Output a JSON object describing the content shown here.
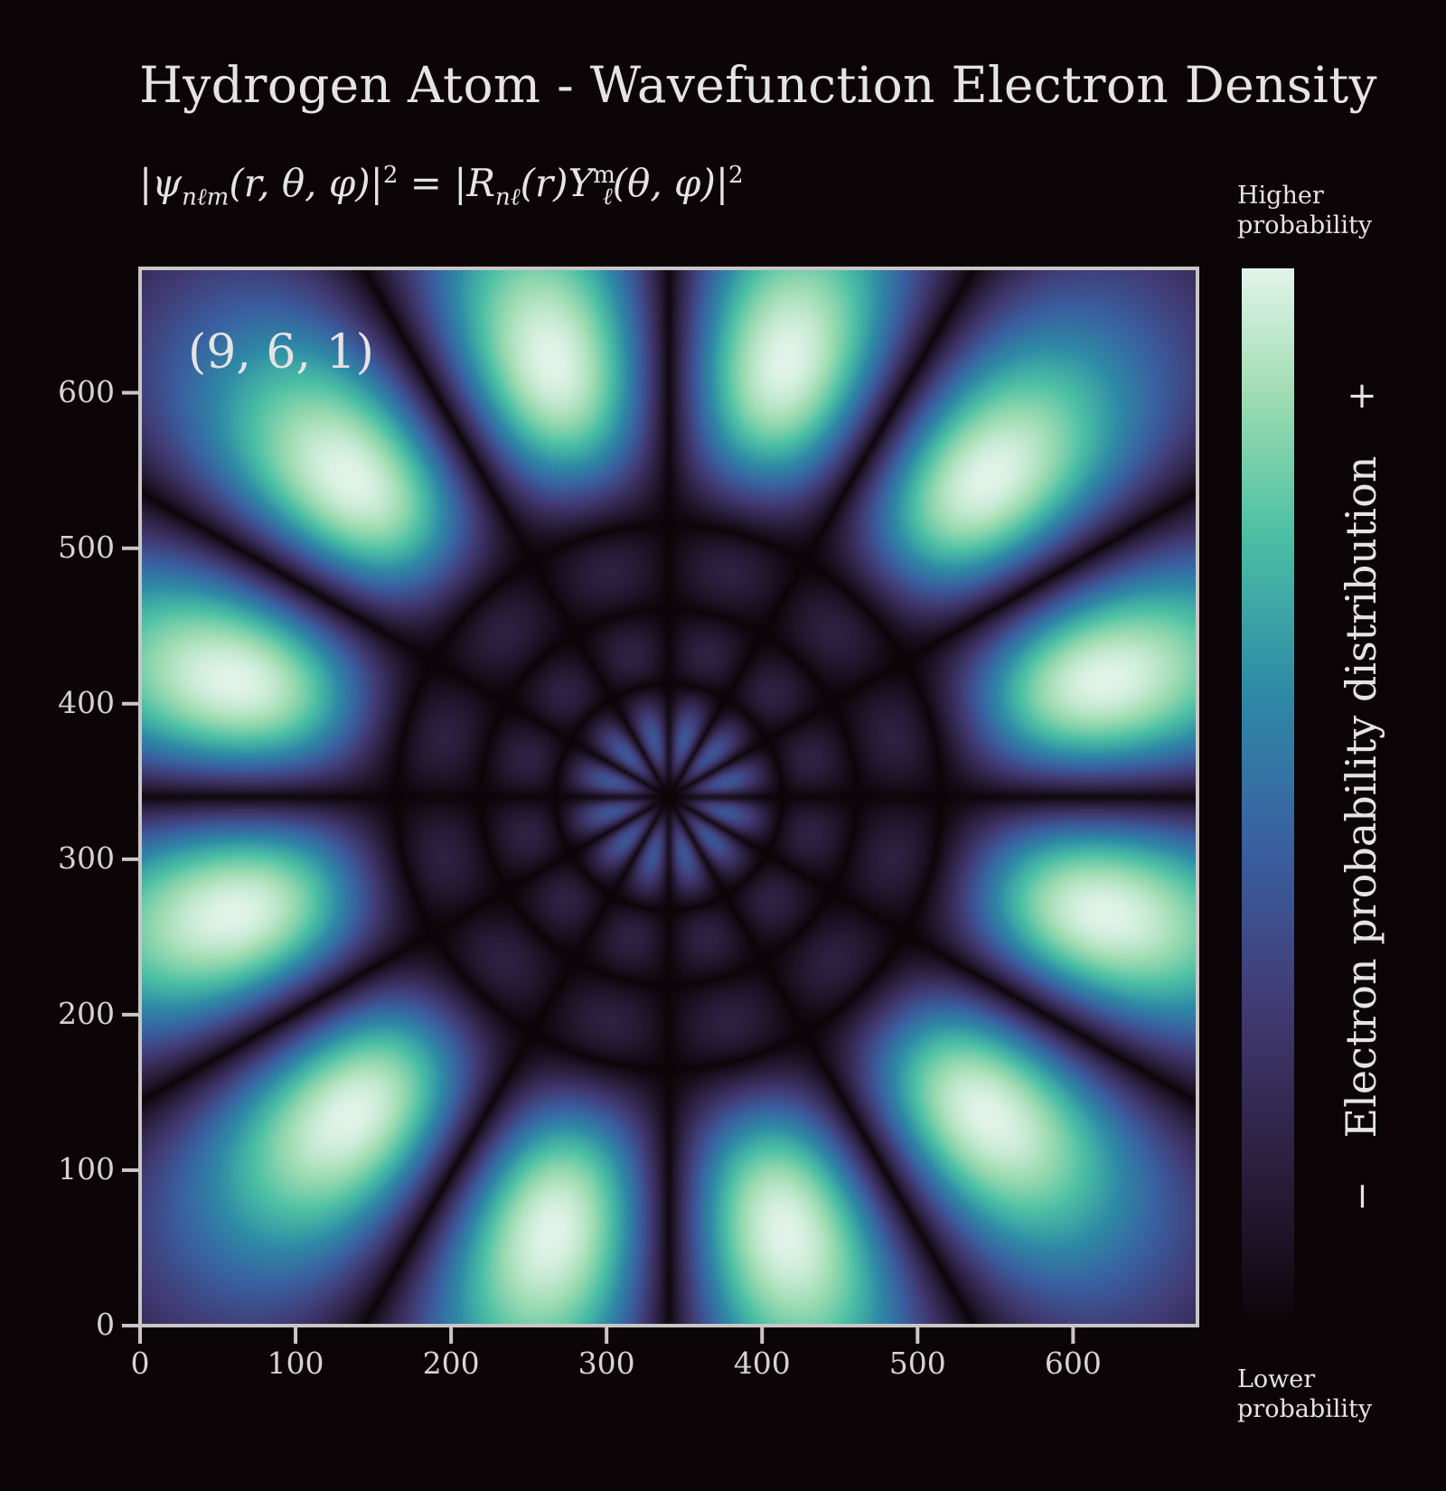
{
  "chart_data": {
    "type": "heatmap",
    "title": "Hydrogen Atom - Wavefunction Electron Density",
    "subtitle": "|ψnℓm(r,θ,φ)|² = |Rnℓ(r)Yℓm(θ,φ)|²",
    "quantum_numbers": {
      "n": 9,
      "l": 6,
      "m": 1
    },
    "annotation": "(9, 6, 1)",
    "xlim": [
      0,
      680
    ],
    "ylim": [
      0,
      680
    ],
    "x_ticks": [
      0,
      100,
      200,
      300,
      400,
      500,
      600
    ],
    "y_ticks": [
      0,
      100,
      200,
      300,
      400,
      500,
      600
    ],
    "center": [
      340,
      340
    ],
    "grid": false,
    "colormap": [
      "#0b0508",
      "#2a1f3d",
      "#413a73",
      "#3a5fa0",
      "#2e8aa6",
      "#4cc0a4",
      "#9fdcb2",
      "#e2f4ea"
    ],
    "colorbar": {
      "label": "Electron probability distribution",
      "top_label": "Higher\nprobability",
      "bottom_label": "Lower\nprobability",
      "plus": "+",
      "minus": "−"
    }
  },
  "formula_parts": {
    "psi": "ψ",
    "psi_sub": "nℓm",
    "args": "(r, θ, φ)|",
    "exp": "2",
    "eq": " = |",
    "R": "R",
    "R_sub": "nℓ",
    "r": "(r)Y",
    "Y_sup": "m",
    "Y_sub": "ℓ",
    "args2": "(θ, φ)|",
    "exp2": "2"
  },
  "colors": {
    "background": "#0b0508",
    "axes": "#c9c6c6",
    "text": "#e6e3e3"
  }
}
